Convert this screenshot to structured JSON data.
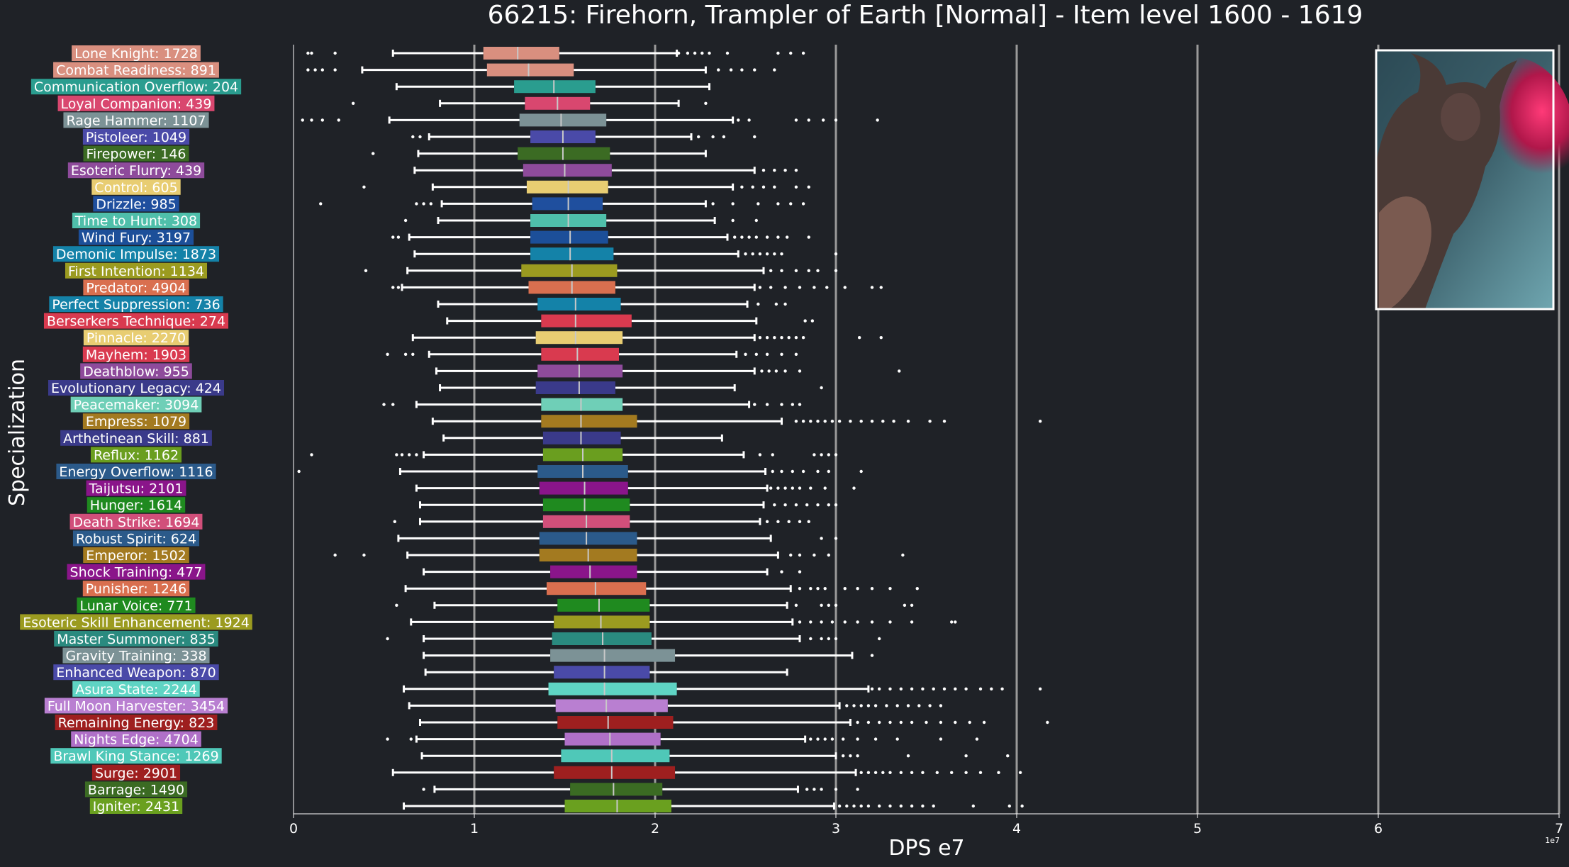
{
  "chart_data": {
    "type": "boxplot",
    "title": "66215: Firehorn, Trampler of Earth [Normal] - Item level 1600 - 1619",
    "xlabel": "DPS e7",
    "ylabel": "Specialization",
    "x_offset_text": "1e7",
    "xlim": [
      0,
      7
    ],
    "x_ticks": [
      "0",
      "1",
      "2",
      "3",
      "4",
      "5",
      "6",
      "7"
    ],
    "vertical_gridlines": [
      1,
      2,
      3,
      4,
      5,
      6,
      7
    ],
    "orientation": "horizontal",
    "has_image_inset": true,
    "colors": {
      "background": "#1f2227",
      "plot_background": "#1f2227",
      "grid": "#9a9a9a",
      "text": "#ffffff",
      "whisker": "#ffffff"
    },
    "series": [
      {
        "label": "Lone Knight: 1728",
        "color": "#d98f7f",
        "q1": 1.05,
        "median": 1.24,
        "q3": 1.47,
        "whislo": 0.55,
        "whishi": 2.12,
        "outliers": [
          0.08,
          0.1,
          0.23,
          2.13,
          2.18,
          2.22,
          2.26,
          2.3,
          2.4,
          2.68,
          2.75,
          2.82
        ]
      },
      {
        "label": "Combat Readiness: 891",
        "color": "#d98f7f",
        "q1": 1.07,
        "median": 1.3,
        "q3": 1.55,
        "whislo": 0.38,
        "whishi": 2.28,
        "outliers": [
          0.08,
          0.12,
          0.16,
          0.23,
          2.35,
          2.42,
          2.48,
          2.55,
          2.66
        ]
      },
      {
        "label": "Communication Overflow: 204",
        "color": "#2a9d8f",
        "q1": 1.22,
        "median": 1.44,
        "q3": 1.67,
        "whislo": 0.57,
        "whishi": 2.3,
        "outliers": []
      },
      {
        "label": "Loyal Companion: 439",
        "color": "#d9476f",
        "q1": 1.28,
        "median": 1.46,
        "q3": 1.64,
        "whislo": 0.81,
        "whishi": 2.13,
        "outliers": [
          0.33,
          2.28
        ]
      },
      {
        "label": "Rage Hammer: 1107",
        "color": "#7c9296",
        "q1": 1.25,
        "median": 1.48,
        "q3": 1.73,
        "whislo": 0.53,
        "whishi": 2.43,
        "outliers": [
          0.05,
          0.1,
          0.16,
          0.25,
          2.46,
          2.52,
          2.78,
          2.85,
          2.93,
          3.0,
          3.23
        ]
      },
      {
        "label": "Pistoleer: 1049",
        "color": "#4a4aa8",
        "q1": 1.31,
        "median": 1.49,
        "q3": 1.67,
        "whislo": 0.75,
        "whishi": 2.2,
        "outliers": [
          0.66,
          0.7,
          2.24,
          2.32,
          2.38,
          2.55
        ]
      },
      {
        "label": "Firepower: 146",
        "color": "#3b6b23",
        "q1": 1.24,
        "median": 1.49,
        "q3": 1.75,
        "whislo": 0.69,
        "whishi": 2.28,
        "outliers": [
          0.44
        ]
      },
      {
        "label": "Esoteric Flurry: 439",
        "color": "#8e4b9b",
        "q1": 1.27,
        "median": 1.5,
        "q3": 1.76,
        "whislo": 0.67,
        "whishi": 2.55,
        "outliers": [
          2.6,
          2.66,
          2.72,
          2.78
        ]
      },
      {
        "label": "Control: 605",
        "color": "#e8cd72",
        "q1": 1.29,
        "median": 1.52,
        "q3": 1.74,
        "whislo": 0.77,
        "whishi": 2.43,
        "outliers": [
          0.39,
          2.48,
          2.54,
          2.6,
          2.66,
          2.78,
          2.85
        ]
      },
      {
        "label": "Drizzle: 985",
        "color": "#1f4f9e",
        "q1": 1.32,
        "median": 1.52,
        "q3": 1.71,
        "whislo": 0.82,
        "whishi": 2.28,
        "outliers": [
          0.15,
          0.68,
          0.72,
          0.76,
          2.32,
          2.43,
          2.57,
          2.68,
          2.75,
          2.82
        ]
      },
      {
        "label": "Time to Hunt: 308",
        "color": "#4fbfaa",
        "q1": 1.31,
        "median": 1.52,
        "q3": 1.73,
        "whislo": 0.8,
        "whishi": 2.33,
        "outliers": [
          0.62,
          2.43,
          2.56
        ]
      },
      {
        "label": "Wind Fury: 3197",
        "color": "#1c4f99",
        "q1": 1.31,
        "median": 1.53,
        "q3": 1.74,
        "whislo": 0.64,
        "whishi": 2.4,
        "outliers": [
          0.55,
          0.58,
          2.44,
          2.48,
          2.52,
          2.56,
          2.62,
          2.68,
          2.73,
          2.85
        ]
      },
      {
        "label": "Demonic Impulse: 1873",
        "color": "#1482a8",
        "q1": 1.31,
        "median": 1.53,
        "q3": 1.77,
        "whislo": 0.67,
        "whishi": 2.46,
        "outliers": [
          2.5,
          2.54,
          2.58,
          2.62,
          2.66,
          2.7,
          3.0
        ]
      },
      {
        "label": "First Intention: 1134",
        "color": "#9b9b20",
        "q1": 1.26,
        "median": 1.54,
        "q3": 1.79,
        "whislo": 0.63,
        "whishi": 2.6,
        "outliers": [
          0.4,
          2.64,
          2.7,
          2.78,
          2.85,
          2.9,
          3.0
        ]
      },
      {
        "label": "Predator: 4904",
        "color": "#d96f4f",
        "q1": 1.3,
        "median": 1.54,
        "q3": 1.78,
        "whislo": 0.6,
        "whishi": 2.55,
        "outliers": [
          0.55,
          0.58,
          2.58,
          2.64,
          2.72,
          2.8,
          2.88,
          2.95,
          3.05,
          3.2,
          3.25
        ]
      },
      {
        "label": "Perfect Suppression: 736",
        "color": "#1482a8",
        "q1": 1.35,
        "median": 1.56,
        "q3": 1.81,
        "whislo": 0.8,
        "whishi": 2.51,
        "outliers": [
          2.57,
          2.67,
          2.72
        ]
      },
      {
        "label": "Berserkers Technique: 274",
        "color": "#d93a4f",
        "q1": 1.37,
        "median": 1.56,
        "q3": 1.87,
        "whislo": 0.85,
        "whishi": 2.56,
        "outliers": [
          2.83,
          2.87
        ]
      },
      {
        "label": "Pinnacle: 2270",
        "color": "#e8cd72",
        "q1": 1.34,
        "median": 1.56,
        "q3": 1.82,
        "whislo": 0.66,
        "whishi": 2.55,
        "outliers": [
          2.58,
          2.62,
          2.66,
          2.7,
          2.74,
          2.78,
          2.82,
          3.13,
          3.25
        ]
      },
      {
        "label": "Mayhem: 1903",
        "color": "#d93a4f",
        "q1": 1.37,
        "median": 1.57,
        "q3": 1.8,
        "whislo": 0.75,
        "whishi": 2.45,
        "outliers": [
          0.52,
          0.62,
          0.66,
          2.5,
          2.56,
          2.62,
          2.7,
          2.78
        ]
      },
      {
        "label": "Deathblow: 955",
        "color": "#8e4b9b",
        "q1": 1.35,
        "median": 1.58,
        "q3": 1.82,
        "whislo": 0.79,
        "whishi": 2.55,
        "outliers": [
          2.59,
          2.63,
          2.67,
          2.72,
          2.8,
          3.35
        ]
      },
      {
        "label": "Evolutionary Legacy: 424",
        "color": "#3a3a8a",
        "q1": 1.34,
        "median": 1.58,
        "q3": 1.78,
        "whislo": 0.81,
        "whishi": 2.44,
        "outliers": [
          2.92
        ]
      },
      {
        "label": "Peacemaker: 3094",
        "color": "#6fcfb7",
        "q1": 1.37,
        "median": 1.59,
        "q3": 1.82,
        "whislo": 0.68,
        "whishi": 2.52,
        "outliers": [
          0.5,
          0.55,
          2.55,
          2.62,
          2.7,
          2.76,
          2.8
        ]
      },
      {
        "label": "Empress: 1079",
        "color": "#a37a20",
        "q1": 1.37,
        "median": 1.59,
        "q3": 1.9,
        "whislo": 0.77,
        "whishi": 2.7,
        "outliers": [
          2.78,
          2.82,
          2.86,
          2.9,
          2.94,
          2.98,
          3.02,
          3.08,
          3.14,
          3.2,
          3.26,
          3.32,
          3.4,
          3.52,
          3.6,
          4.13
        ]
      },
      {
        "label": "Arthetinean Skill: 881",
        "color": "#3a3a8a",
        "q1": 1.38,
        "median": 1.59,
        "q3": 1.81,
        "whislo": 0.83,
        "whishi": 2.37,
        "outliers": []
      },
      {
        "label": "Reflux: 1162",
        "color": "#6a9e1f",
        "q1": 1.38,
        "median": 1.6,
        "q3": 1.82,
        "whislo": 0.72,
        "whishi": 2.49,
        "outliers": [
          0.1,
          0.57,
          0.6,
          0.64,
          0.68,
          2.58,
          2.65,
          2.88,
          2.92,
          2.96,
          3.0
        ]
      },
      {
        "label": "Energy Overflow: 1116",
        "color": "#2b5a8a",
        "q1": 1.35,
        "median": 1.6,
        "q3": 1.85,
        "whislo": 0.59,
        "whishi": 2.61,
        "outliers": [
          0.03,
          2.65,
          2.7,
          2.76,
          2.82,
          2.9,
          2.96,
          3.14
        ]
      },
      {
        "label": "Taijutsu: 2101",
        "color": "#8a158a",
        "q1": 1.36,
        "median": 1.61,
        "q3": 1.85,
        "whislo": 0.68,
        "whishi": 2.62,
        "outliers": [
          2.64,
          2.68,
          2.72,
          2.76,
          2.8,
          2.86,
          2.94,
          3.1
        ]
      },
      {
        "label": "Hunger: 1614",
        "color": "#1f8a1f",
        "q1": 1.38,
        "median": 1.61,
        "q3": 1.86,
        "whislo": 0.7,
        "whishi": 2.6,
        "outliers": [
          2.66,
          2.72,
          2.78,
          2.84,
          2.9,
          2.96,
          3.0
        ]
      },
      {
        "label": "Death Strike: 1694",
        "color": "#d14f7a",
        "q1": 1.38,
        "median": 1.62,
        "q3": 1.86,
        "whislo": 0.7,
        "whishi": 2.58,
        "outliers": [
          0.56,
          2.62,
          2.68,
          2.74,
          2.8,
          2.85
        ]
      },
      {
        "label": "Robust Spirit: 624",
        "color": "#2b5a8a",
        "q1": 1.36,
        "median": 1.62,
        "q3": 1.9,
        "whislo": 0.58,
        "whishi": 2.64,
        "outliers": [
          2.92,
          3.0
        ]
      },
      {
        "label": "Emperor: 1502",
        "color": "#a37a20",
        "q1": 1.36,
        "median": 1.63,
        "q3": 1.9,
        "whislo": 0.63,
        "whishi": 2.68,
        "outliers": [
          0.23,
          0.39,
          2.75,
          2.8,
          2.88,
          2.96,
          3.37
        ]
      },
      {
        "label": "Shock Training: 477",
        "color": "#8a158a",
        "q1": 1.42,
        "median": 1.64,
        "q3": 1.9,
        "whislo": 0.72,
        "whishi": 2.62,
        "outliers": [
          2.7,
          2.8
        ]
      },
      {
        "label": "Punisher: 1246",
        "color": "#d96f4f",
        "q1": 1.4,
        "median": 1.67,
        "q3": 1.95,
        "whislo": 0.62,
        "whishi": 2.75,
        "outliers": [
          2.8,
          2.86,
          2.9,
          2.94,
          3.05,
          3.12,
          3.2,
          3.3,
          3.45
        ]
      },
      {
        "label": "Lunar Voice: 771",
        "color": "#1f8a1f",
        "q1": 1.46,
        "median": 1.69,
        "q3": 1.97,
        "whislo": 0.78,
        "whishi": 2.73,
        "outliers": [
          0.57,
          2.78,
          2.92,
          2.96,
          3.0,
          3.38,
          3.42
        ]
      },
      {
        "label": "Esoteric Skill Enhancement: 1924",
        "color": "#9b9b20",
        "q1": 1.44,
        "median": 1.7,
        "q3": 1.97,
        "whislo": 0.65,
        "whishi": 2.76,
        "outliers": [
          2.8,
          2.86,
          2.92,
          2.98,
          3.05,
          3.12,
          3.2,
          3.3,
          3.42,
          3.64,
          3.66
        ]
      },
      {
        "label": "Master Summoner: 835",
        "color": "#2a8a7f",
        "q1": 1.43,
        "median": 1.71,
        "q3": 1.98,
        "whislo": 0.72,
        "whishi": 2.8,
        "outliers": [
          0.52,
          2.86,
          2.92,
          2.96,
          3.0,
          3.24
        ]
      },
      {
        "label": "Gravity Training: 338",
        "color": "#7c9296",
        "q1": 1.42,
        "median": 1.72,
        "q3": 2.11,
        "whislo": 0.72,
        "whishi": 3.09,
        "outliers": [
          3.2
        ]
      },
      {
        "label": "Enhanced Weapon: 870",
        "color": "#4a4aa8",
        "q1": 1.44,
        "median": 1.72,
        "q3": 1.97,
        "whislo": 0.73,
        "whishi": 2.73,
        "outliers": []
      },
      {
        "label": "Asura State: 2244",
        "color": "#5fd4c4",
        "q1": 1.41,
        "median": 1.72,
        "q3": 2.12,
        "whislo": 0.61,
        "whishi": 3.18,
        "outliers": [
          3.2,
          3.24,
          3.3,
          3.36,
          3.42,
          3.48,
          3.54,
          3.6,
          3.66,
          3.72,
          3.8,
          3.86,
          3.92,
          4.13
        ]
      },
      {
        "label": "Full Moon Harvester: 3454",
        "color": "#b97fd1",
        "q1": 1.45,
        "median": 1.73,
        "q3": 2.07,
        "whislo": 0.64,
        "whishi": 3.02,
        "outliers": [
          3.06,
          3.1,
          3.14,
          3.18,
          3.22,
          3.28,
          3.34,
          3.4,
          3.46,
          3.52,
          3.58
        ]
      },
      {
        "label": "Remaining Energy: 823",
        "color": "#9e1f1f",
        "q1": 1.46,
        "median": 1.74,
        "q3": 2.1,
        "whislo": 0.7,
        "whishi": 3.08,
        "outliers": [
          3.12,
          3.18,
          3.24,
          3.3,
          3.36,
          3.42,
          3.5,
          3.58,
          3.66,
          3.74,
          3.82,
          4.17
        ]
      },
      {
        "label": "Nights Edge: 4704",
        "color": "#b070c8",
        "q1": 1.5,
        "median": 1.75,
        "q3": 2.03,
        "whislo": 0.68,
        "whishi": 2.83,
        "outliers": [
          0.52,
          0.65,
          2.86,
          2.9,
          2.94,
          2.98,
          3.04,
          3.12,
          3.22,
          3.34,
          3.58,
          3.78
        ]
      },
      {
        "label": "Brawl King Stance: 1269",
        "color": "#4fc8b8",
        "q1": 1.48,
        "median": 1.76,
        "q3": 2.08,
        "whislo": 0.71,
        "whishi": 3.0,
        "outliers": [
          3.04,
          3.08,
          3.12,
          3.4,
          3.72,
          3.95
        ]
      },
      {
        "label": "Surge: 2901",
        "color": "#9e1f1f",
        "q1": 1.44,
        "median": 1.76,
        "q3": 2.11,
        "whislo": 0.55,
        "whishi": 3.11,
        "outliers": [
          3.14,
          3.18,
          3.22,
          3.26,
          3.3,
          3.36,
          3.42,
          3.48,
          3.56,
          3.64,
          3.72,
          3.8,
          3.9,
          4.02
        ]
      },
      {
        "label": "Barrage: 1490",
        "color": "#3b6b23",
        "q1": 1.53,
        "median": 1.77,
        "q3": 2.04,
        "whislo": 0.78,
        "whishi": 2.79,
        "outliers": [
          0.72,
          2.84,
          2.88,
          2.92,
          3.0,
          3.12
        ]
      },
      {
        "label": "Igniter: 2431",
        "color": "#6aa01f",
        "q1": 1.5,
        "median": 1.79,
        "q3": 2.09,
        "whislo": 0.61,
        "whishi": 2.99,
        "outliers": [
          3.02,
          3.06,
          3.1,
          3.14,
          3.18,
          3.24,
          3.3,
          3.36,
          3.42,
          3.48,
          3.54,
          3.76,
          3.96,
          4.03
        ]
      }
    ]
  }
}
